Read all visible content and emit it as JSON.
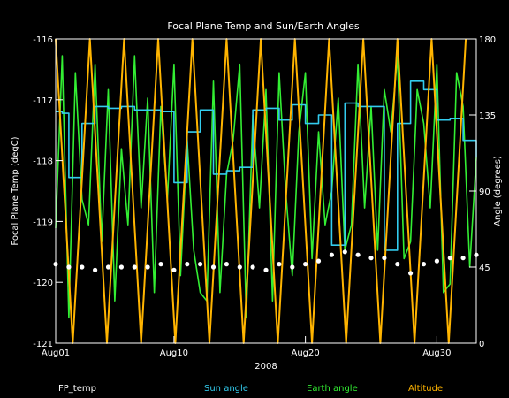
{
  "chart_data": {
    "type": "line",
    "title": "Focal Plane Temp and Sun/Earth Angles",
    "xlabel": "2008",
    "ylabel_left": "Focal Plane Temp (degC)",
    "ylabel_right": "Angle (degrees)",
    "x_range_days": [
      1,
      33
    ],
    "x_ticks": [
      {
        "day": 1,
        "label": "Aug01"
      },
      {
        "day": 10,
        "label": "Aug10"
      },
      {
        "day": 20,
        "label": "Aug20"
      },
      {
        "day": 30,
        "label": "Aug30"
      }
    ],
    "ylim_left": [
      -121,
      -116
    ],
    "ylim_right": [
      0,
      180
    ],
    "y_ticks_left": [
      {
        "value": -116,
        "label": "-116"
      },
      {
        "value": -117,
        "label": "-117"
      },
      {
        "value": -118,
        "label": "-118"
      },
      {
        "value": -119,
        "label": "-119"
      },
      {
        "value": -120,
        "label": "-120"
      },
      {
        "value": -121,
        "label": "-121"
      }
    ],
    "y_ticks_right": [
      {
        "value": 180,
        "label": "180"
      },
      {
        "value": 135,
        "label": "135"
      },
      {
        "value": 90,
        "label": "90"
      },
      {
        "value": 45,
        "label": "45"
      },
      {
        "value": 0,
        "label": "0"
      }
    ],
    "background": "#000000",
    "axis_color": "#ffffff",
    "legend_position": "bottom",
    "series": [
      {
        "name": "FP_temp",
        "color": "#ffffff",
        "axis": "left",
        "style": "points",
        "x": [
          1,
          2,
          3,
          4,
          5,
          6,
          7,
          8,
          9,
          10,
          11,
          12,
          13,
          14,
          15,
          16,
          17,
          18,
          19,
          20,
          21,
          22,
          23,
          24,
          25,
          26,
          27,
          28,
          29,
          30,
          31,
          32,
          33
        ],
        "y": [
          -119.7,
          -119.75,
          -119.75,
          -119.8,
          -119.75,
          -119.75,
          -119.75,
          -119.75,
          -119.7,
          -119.8,
          -119.7,
          -119.7,
          -119.75,
          -119.7,
          -119.75,
          -119.75,
          -119.8,
          -119.7,
          -119.75,
          -119.7,
          -119.65,
          -119.55,
          -119.5,
          -119.55,
          -119.6,
          -119.6,
          -119.7,
          -119.85,
          -119.7,
          -119.65,
          -119.6,
          -119.6,
          -119.55
        ]
      },
      {
        "name": "Sun angle",
        "color": "#33ccee",
        "axis": "right",
        "style": "step",
        "x": [
          1,
          1.5,
          2,
          3,
          4,
          5,
          6,
          7,
          8,
          9,
          10,
          11,
          12,
          13,
          14,
          15,
          16,
          17,
          18,
          19,
          20,
          21,
          22,
          23,
          24,
          25,
          26,
          27,
          28,
          29,
          30,
          31,
          32,
          33
        ],
        "y": [
          137,
          136,
          98,
          130,
          140,
          139,
          140,
          138,
          138,
          137,
          95,
          125,
          138,
          100,
          102,
          104,
          138,
          139,
          132,
          141,
          130,
          135,
          58,
          142,
          140,
          140,
          55,
          130,
          155,
          150,
          132,
          133,
          120,
          110
        ]
      },
      {
        "name": "Earth angle",
        "color": "#33ee33",
        "axis": "right",
        "style": "line",
        "x": [
          1,
          1.5,
          2,
          2.5,
          3,
          3.5,
          4,
          4.5,
          5,
          5.5,
          6,
          6.5,
          7,
          7.5,
          8,
          8.5,
          9,
          9.5,
          10,
          10.5,
          11,
          11.5,
          12,
          12.5,
          13,
          13.5,
          14,
          14.5,
          15,
          15.5,
          16,
          16.5,
          17,
          17.5,
          18,
          18.5,
          19,
          19.5,
          20,
          20.5,
          21,
          21.5,
          22,
          22.5,
          23,
          23.5,
          24,
          24.5,
          25,
          25.5,
          26,
          26.5,
          27,
          27.5,
          28,
          28.5,
          29,
          29.5,
          30,
          30.5,
          31,
          31.5,
          32,
          32.5,
          33
        ],
        "y": [
          68,
          170,
          15,
          160,
          85,
          70,
          165,
          60,
          150,
          25,
          115,
          70,
          170,
          80,
          145,
          30,
          140,
          85,
          165,
          40,
          120,
          55,
          30,
          25,
          155,
          30,
          100,
          120,
          165,
          15,
          135,
          80,
          150,
          25,
          160,
          90,
          40,
          125,
          160,
          50,
          125,
          70,
          90,
          145,
          55,
          70,
          165,
          80,
          140,
          55,
          150,
          125,
          170,
          50,
          60,
          150,
          130,
          80,
          165,
          30,
          35,
          160,
          140,
          45,
          110
        ]
      },
      {
        "name": "Altitude",
        "color": "#ffb400",
        "axis": "right",
        "style": "line",
        "x": [
          1,
          2.3,
          3.6,
          4.9,
          6.2,
          7.5,
          8.8,
          10.1,
          11.4,
          12.7,
          14,
          15.3,
          16.6,
          17.9,
          19.2,
          20.5,
          21.8,
          23.1,
          24.4,
          25.7,
          27,
          28.3,
          29.6,
          30.9,
          32.2
        ],
        "y": [
          180,
          0,
          180,
          0,
          180,
          0,
          180,
          0,
          180,
          0,
          180,
          0,
          180,
          0,
          180,
          0,
          180,
          0,
          180,
          0,
          180,
          0,
          180,
          0,
          180
        ]
      }
    ]
  }
}
